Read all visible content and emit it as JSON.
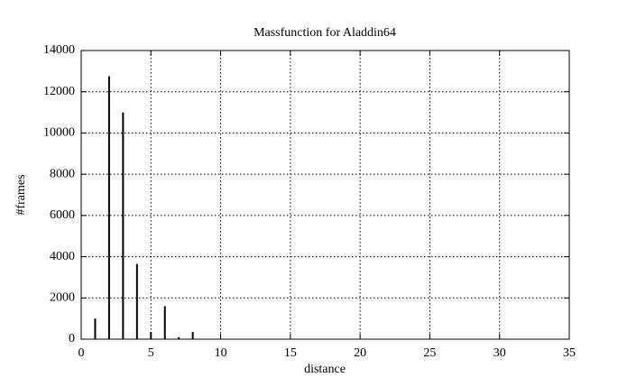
{
  "chart_data": {
    "type": "impulse",
    "title": "Massfunction for Aladdin64",
    "x_label": "distance",
    "y_label": "#frames",
    "x": [
      1,
      2,
      3,
      4,
      5,
      6,
      7,
      8
    ],
    "values": [
      1000,
      12750,
      11000,
      3650,
      350,
      1600,
      100,
      350
    ],
    "color": "#000000",
    "xlim": [
      0,
      35
    ],
    "xticks": [
      0,
      5,
      10,
      15,
      20,
      25,
      30,
      35
    ],
    "ylim": [
      0,
      14000
    ],
    "yticks": [
      0,
      2000,
      4000,
      6000,
      8000,
      10000,
      12000,
      14000
    ],
    "grid": true
  }
}
